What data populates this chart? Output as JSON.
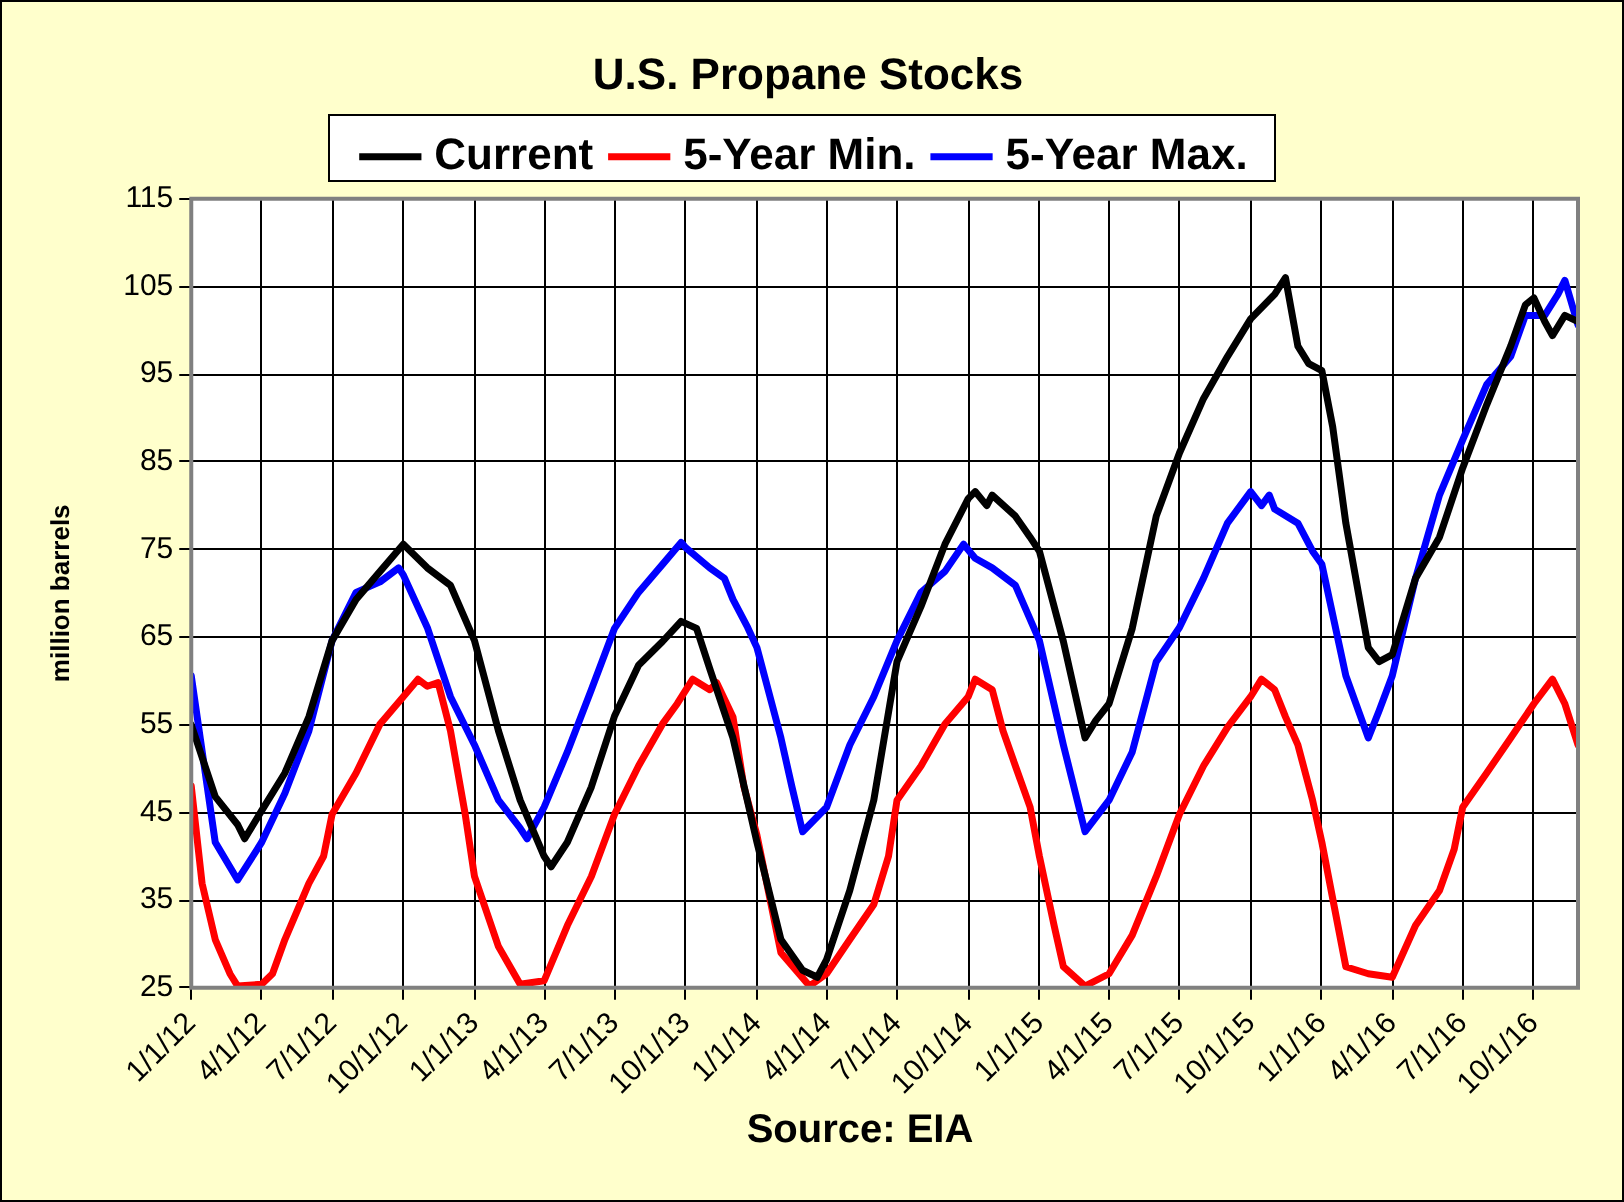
{
  "chart_data": {
    "type": "line",
    "title": "U.S. Propane Stocks",
    "ylabel": "million barrels",
    "annotations": [
      "Source:  EIA"
    ],
    "xlim": [
      "2012-01-01",
      "2016-11-27"
    ],
    "xticks": [
      {
        "value": "2012-01-01",
        "label": "1/1/12"
      },
      {
        "value": "2012-04-01",
        "label": "4/1/12"
      },
      {
        "value": "2012-07-01",
        "label": "7/1/12"
      },
      {
        "value": "2012-10-01",
        "label": "10/1/12"
      },
      {
        "value": "2013-01-01",
        "label": "1/1/13"
      },
      {
        "value": "2013-04-01",
        "label": "4/1/13"
      },
      {
        "value": "2013-07-01",
        "label": "7/1/13"
      },
      {
        "value": "2013-10-01",
        "label": "10/1/13"
      },
      {
        "value": "2014-01-01",
        "label": "1/1/14"
      },
      {
        "value": "2014-04-01",
        "label": "4/1/14"
      },
      {
        "value": "2014-07-01",
        "label": "7/1/14"
      },
      {
        "value": "2014-10-01",
        "label": "10/1/14"
      },
      {
        "value": "2015-01-01",
        "label": "1/1/15"
      },
      {
        "value": "2015-04-01",
        "label": "4/1/15"
      },
      {
        "value": "2015-07-01",
        "label": "7/1/15"
      },
      {
        "value": "2015-10-01",
        "label": "10/1/15"
      },
      {
        "value": "2016-01-01",
        "label": "1/1/16"
      },
      {
        "value": "2016-04-01",
        "label": "4/1/16"
      },
      {
        "value": "2016-07-01",
        "label": "7/1/16"
      },
      {
        "value": "2016-10-01",
        "label": "10/1/16"
      }
    ],
    "ylim": [
      25,
      115
    ],
    "yticks": [
      25,
      35,
      45,
      55,
      65,
      75,
      85,
      95,
      105,
      115
    ],
    "grid": true,
    "legend": "top",
    "marker": "none",
    "line_style": "solid",
    "series": [
      {
        "name": "Current",
        "color": "#000000",
        "x": [
          "2012-01-01",
          "2012-02-01",
          "2012-03-01",
          "2012-03-10",
          "2012-04-01",
          "2012-05-01",
          "2012-06-01",
          "2012-07-01",
          "2012-08-01",
          "2012-09-01",
          "2012-10-01",
          "2012-11-01",
          "2012-12-01",
          "2013-01-01",
          "2013-02-01",
          "2013-03-01",
          "2013-04-01",
          "2013-04-10",
          "2013-05-01",
          "2013-06-01",
          "2013-07-01",
          "2013-08-01",
          "2013-09-01",
          "2013-09-25",
          "2013-10-15",
          "2013-11-01",
          "2013-12-01",
          "2014-01-01",
          "2014-02-01",
          "2014-03-01",
          "2014-03-20",
          "2014-04-01",
          "2014-05-01",
          "2014-06-01",
          "2014-07-01",
          "2014-08-01",
          "2014-09-01",
          "2014-10-01",
          "2014-10-10",
          "2014-10-25",
          "2014-11-01",
          "2014-12-01",
          "2014-12-20",
          "2015-01-01",
          "2015-02-01",
          "2015-03-01",
          "2015-03-15",
          "2015-04-01",
          "2015-05-01",
          "2015-06-01",
          "2015-07-01",
          "2015-08-01",
          "2015-09-01",
          "2015-10-01",
          "2015-11-01",
          "2015-11-15",
          "2015-12-01",
          "2015-12-15",
          "2016-01-01",
          "2016-01-15",
          "2016-02-01",
          "2016-03-01",
          "2016-03-15",
          "2016-04-01",
          "2016-05-01",
          "2016-06-01",
          "2016-07-01",
          "2016-08-01",
          "2016-09-01",
          "2016-09-20",
          "2016-10-01",
          "2016-10-15",
          "2016-10-25",
          "2016-11-10",
          "2016-11-27"
        ],
        "values": [
          55,
          46.8,
          43.6,
          42,
          45.2,
          49.5,
          55.9,
          64.6,
          69.3,
          72.5,
          75.6,
          72.9,
          70.9,
          64.6,
          54.3,
          46.4,
          40,
          38.8,
          41.6,
          47.9,
          56,
          61.8,
          64.5,
          66.8,
          66,
          61.4,
          53.5,
          41.6,
          30.5,
          27,
          26.2,
          28.2,
          36.1,
          46.4,
          62.2,
          68.5,
          75.6,
          80.8,
          81.6,
          80,
          81.2,
          78.8,
          76.4,
          74.8,
          64.5,
          53.5,
          55.5,
          57.4,
          66,
          78.8,
          86,
          92.2,
          97,
          101.3,
          104.1,
          106,
          98.2,
          96.2,
          95.4,
          89,
          78,
          63.8,
          62.2,
          63,
          71.7,
          76.4,
          84.3,
          91.5,
          98.2,
          102.9,
          103.7,
          101,
          99.4,
          101.7,
          101
        ]
      },
      {
        "name": "5-Year Min.",
        "color": "#ff0000",
        "x": [
          "2012-01-01",
          "2012-01-15",
          "2012-02-01",
          "2012-02-20",
          "2012-03-01",
          "2012-04-01",
          "2012-04-15",
          "2012-05-01",
          "2012-06-01",
          "2012-06-20",
          "2012-07-01",
          "2012-08-01",
          "2012-09-01",
          "2012-10-01",
          "2012-10-20",
          "2012-11-01",
          "2012-11-15",
          "2012-12-01",
          "2012-12-20",
          "2013-01-01",
          "2013-02-01",
          "2013-03-01",
          "2013-04-01",
          "2013-05-01",
          "2013-06-01",
          "2013-07-01",
          "2013-08-01",
          "2013-09-01",
          "2013-09-20",
          "2013-10-10",
          "2013-11-01",
          "2013-11-10",
          "2013-12-01",
          "2013-12-15",
          "2014-01-01",
          "2014-02-01",
          "2014-03-10",
          "2014-04-01",
          "2014-05-01",
          "2014-06-01",
          "2014-06-20",
          "2014-07-01",
          "2014-08-01",
          "2014-09-01",
          "2014-10-01",
          "2014-10-10",
          "2014-11-01",
          "2014-11-15",
          "2014-12-01",
          "2014-12-20",
          "2015-01-01",
          "2015-01-20",
          "2015-02-01",
          "2015-03-01",
          "2015-04-01",
          "2015-05-01",
          "2015-06-01",
          "2015-07-01",
          "2015-08-01",
          "2015-09-01",
          "2015-10-01",
          "2015-10-15",
          "2015-11-01",
          "2015-11-15",
          "2015-12-01",
          "2015-12-20",
          "2016-01-01",
          "2016-02-01",
          "2016-03-01",
          "2016-04-01",
          "2016-05-01",
          "2016-06-01",
          "2016-06-20",
          "2016-07-01",
          "2016-08-01",
          "2016-09-01",
          "2016-10-01",
          "2016-10-25",
          "2016-11-10",
          "2016-11-27"
        ],
        "values": [
          48,
          36.9,
          30.5,
          26.6,
          25.2,
          25.4,
          26.6,
          30.5,
          36.9,
          40,
          44.8,
          49.5,
          55.1,
          58.2,
          60.2,
          59.4,
          59.8,
          54.3,
          44.8,
          37.7,
          29.7,
          25.4,
          25.8,
          32.1,
          37.7,
          44.8,
          50.3,
          55.1,
          57.4,
          60.2,
          59,
          59.8,
          55.9,
          48,
          42.4,
          29,
          25.2,
          26.6,
          30.5,
          34.5,
          40,
          46.4,
          50.3,
          55.1,
          58.2,
          60.2,
          59,
          54.3,
          50.3,
          45.6,
          40,
          32.1,
          27.4,
          25.2,
          26.6,
          31,
          37.7,
          44.8,
          50.3,
          54.7,
          58.2,
          60.2,
          59,
          55.9,
          52.7,
          46.4,
          41.6,
          27.4,
          26.6,
          26.2,
          32.1,
          36.1,
          40.8,
          45.6,
          49.5,
          53.5,
          57.4,
          60.2,
          57.4,
          52.7
        ]
      },
      {
        "name": "5-Year Max.",
        "color": "#0000ff",
        "x": [
          "2012-01-01",
          "2012-02-01",
          "2012-03-01",
          "2012-04-01",
          "2012-05-01",
          "2012-06-01",
          "2012-07-01",
          "2012-08-01",
          "2012-09-01",
          "2012-09-25",
          "2012-10-01",
          "2012-11-01",
          "2012-12-01",
          "2013-01-01",
          "2013-02-01",
          "2013-03-01",
          "2013-03-10",
          "2013-04-01",
          "2013-05-01",
          "2013-06-01",
          "2013-07-01",
          "2013-08-01",
          "2013-09-01",
          "2013-09-25",
          "2013-10-01",
          "2013-11-01",
          "2013-11-20",
          "2013-12-01",
          "2013-12-20",
          "2014-01-01",
          "2014-02-01",
          "2014-02-15",
          "2014-03-01",
          "2014-04-01",
          "2014-05-01",
          "2014-06-01",
          "2014-07-01",
          "2014-08-01",
          "2014-09-01",
          "2014-09-25",
          "2014-10-10",
          "2014-11-01",
          "2014-12-01",
          "2015-01-01",
          "2015-02-01",
          "2015-03-01",
          "2015-04-01",
          "2015-05-01",
          "2015-06-01",
          "2015-07-01",
          "2015-08-01",
          "2015-09-01",
          "2015-10-01",
          "2015-10-15",
          "2015-10-25",
          "2015-11-01",
          "2015-12-01",
          "2015-12-20",
          "2016-01-01",
          "2016-02-01",
          "2016-03-01",
          "2016-03-15",
          "2016-04-01",
          "2016-05-01",
          "2016-06-01",
          "2016-07-01",
          "2016-08-01",
          "2016-09-01",
          "2016-09-20",
          "2016-10-15",
          "2016-11-01",
          "2016-11-10",
          "2016-11-27"
        ],
        "values": [
          60.6,
          41.6,
          37.3,
          41.6,
          47.2,
          54.3,
          64.6,
          70.1,
          71.3,
          72.9,
          72.1,
          66.1,
          58.2,
          52.7,
          46.4,
          43.2,
          42,
          45.6,
          51.9,
          59,
          66,
          70.1,
          73.3,
          75.8,
          75.2,
          72.9,
          71.7,
          69.3,
          66.1,
          63.8,
          53.5,
          48,
          42.8,
          45.6,
          52.7,
          58.2,
          64.6,
          70.1,
          72.5,
          75.6,
          74,
          72.9,
          70.9,
          64.6,
          52.7,
          42.8,
          46.4,
          51.9,
          62.2,
          66.1,
          71.7,
          78,
          81.6,
          80,
          81.2,
          79.6,
          78,
          74.8,
          73.3,
          60.6,
          53.5,
          56.6,
          60.6,
          71.7,
          81.2,
          87.5,
          93.8,
          97,
          101.7,
          101.7,
          104.1,
          105.7,
          100.6
        ]
      }
    ]
  }
}
